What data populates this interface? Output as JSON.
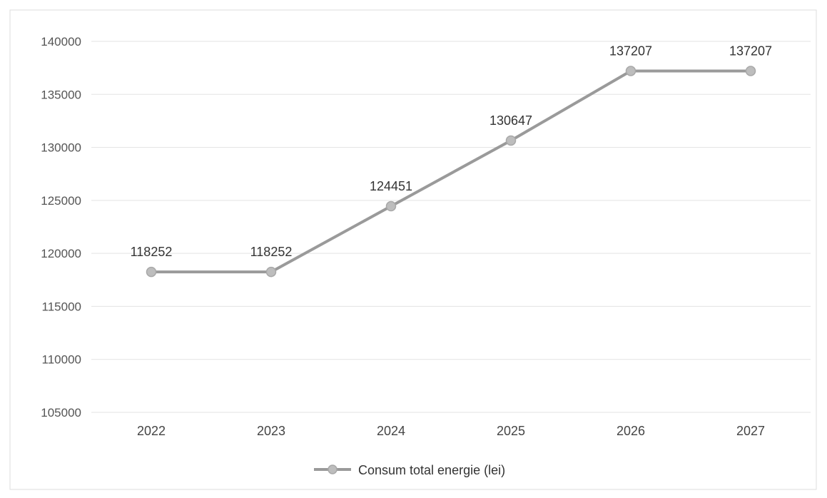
{
  "chart_data": {
    "type": "line",
    "title": "",
    "xlabel": "",
    "ylabel": "",
    "categories": [
      "2022",
      "2023",
      "2024",
      "2025",
      "2026",
      "2027"
    ],
    "series": [
      {
        "name": "Consum total energie (lei)",
        "values": [
          118252,
          118252,
          124451,
          130647,
          137207,
          137207
        ],
        "color": "#9a9a9a",
        "marker_color": "#bdbdbd"
      }
    ],
    "ylim": [
      105000,
      140000
    ],
    "yticks": [
      105000,
      110000,
      115000,
      120000,
      125000,
      130000,
      135000,
      140000
    ],
    "grid": true,
    "data_labels": true,
    "legend_position": "bottom"
  }
}
